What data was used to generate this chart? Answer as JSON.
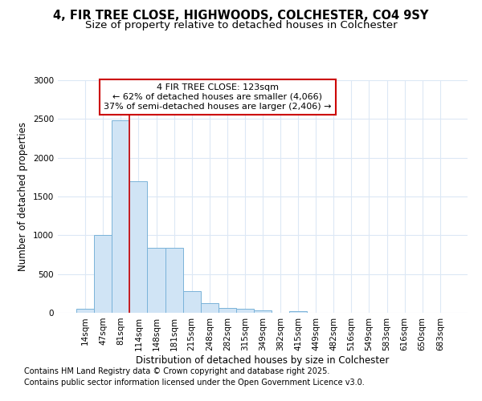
{
  "title_line1": "4, FIR TREE CLOSE, HIGHWOODS, COLCHESTER, CO4 9SY",
  "title_line2": "Size of property relative to detached houses in Colchester",
  "xlabel": "Distribution of detached houses by size in Colchester",
  "ylabel": "Number of detached properties",
  "footer_line1": "Contains HM Land Registry data © Crown copyright and database right 2025.",
  "footer_line2": "Contains public sector information licensed under the Open Government Licence v3.0.",
  "bin_labels": [
    "14sqm",
    "47sqm",
    "81sqm",
    "114sqm",
    "148sqm",
    "181sqm",
    "215sqm",
    "248sqm",
    "282sqm",
    "315sqm",
    "349sqm",
    "382sqm",
    "415sqm",
    "449sqm",
    "482sqm",
    "516sqm",
    "549sqm",
    "583sqm",
    "616sqm",
    "650sqm",
    "683sqm"
  ],
  "bar_heights": [
    50,
    1005,
    2480,
    1700,
    840,
    840,
    275,
    120,
    60,
    50,
    35,
    0,
    20,
    0,
    0,
    0,
    0,
    0,
    0,
    0,
    0
  ],
  "bar_color": "#d0e4f5",
  "bar_edge_color": "#7ab3d9",
  "annotation_text": "4 FIR TREE CLOSE: 123sqm\n← 62% of detached houses are smaller (4,066)\n37% of semi-detached houses are larger (2,406) →",
  "vline_color": "#cc0000",
  "vline_x_index": 2.5,
  "annotation_box_color": "#cc0000",
  "ylim": [
    0,
    3000
  ],
  "yticks": [
    0,
    500,
    1000,
    1500,
    2000,
    2500,
    3000
  ],
  "bg_color": "#ffffff",
  "plot_bg_color": "#ffffff",
  "grid_color": "#dce8f5",
  "title_fontsize": 10.5,
  "subtitle_fontsize": 9.5,
  "axis_label_fontsize": 8.5,
  "tick_fontsize": 7.5,
  "annotation_fontsize": 8,
  "footer_fontsize": 7
}
